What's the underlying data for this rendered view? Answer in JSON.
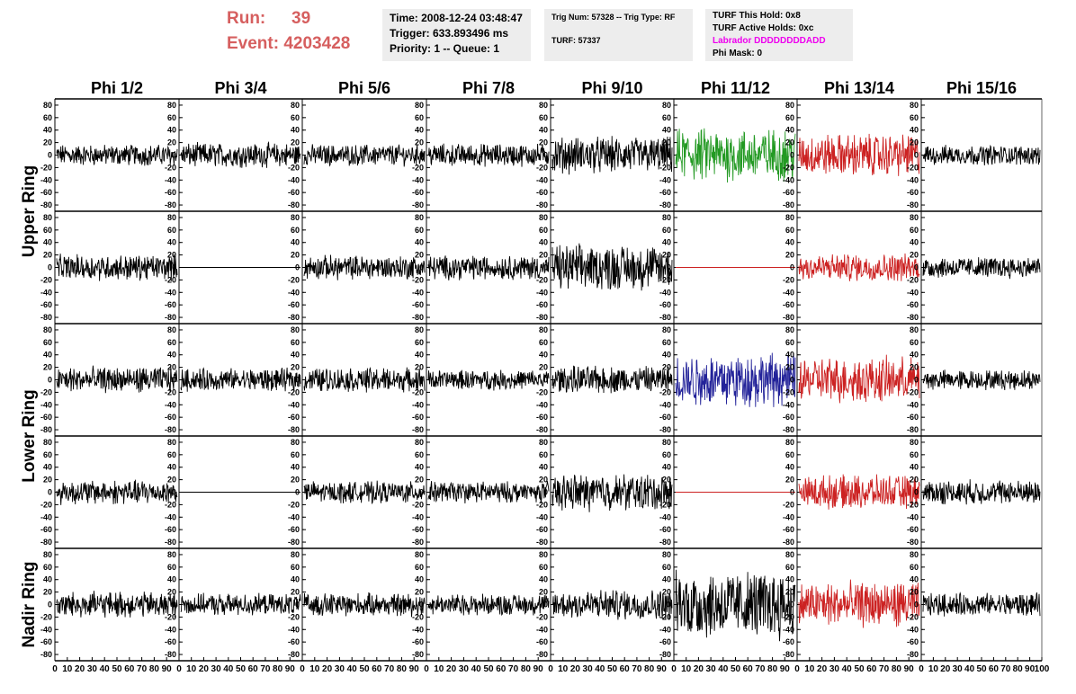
{
  "header": {
    "run_label": "Run:",
    "run_value": "39",
    "event_label": "Event:",
    "event_value": "4203428",
    "time_text": "Time: 2008-12-24 03:48:47",
    "trigger_text": "Trigger: 633.893496 ms",
    "priority_text": "Priority: 1 -- Queue: 1",
    "trig_num_text": "Trig Num: 57328 -- Trig Type: RF",
    "turf_text": "TURF: 57337",
    "turf_hold_text": "TURF This Hold: 0x8",
    "turf_active_text": "TURF Active Holds: 0xc",
    "labrador_text": "Labrador DDDDDDDDADD",
    "phi_mask_text": "Phi Mask: 0",
    "colors": {
      "run": "#d65f5f",
      "labrador": "#ee00ee",
      "box": "#ededed"
    }
  },
  "chart_data": {
    "type": "line",
    "column_titles": [
      "Phi 1/2",
      "Phi 3/4",
      "Phi 5/6",
      "Phi 7/8",
      "Phi 9/10",
      "Phi 11/12",
      "Phi 13/14",
      "Phi 15/16"
    ],
    "ring_labels": [
      "Upper Ring",
      "Lower Ring",
      "Nadir Ring"
    ],
    "rows": 5,
    "ylim": [
      -90,
      90
    ],
    "yticks": [
      -80,
      -60,
      -40,
      -20,
      0,
      20,
      40,
      60,
      80
    ],
    "xlim": [
      0,
      100
    ],
    "xticks": [
      0,
      10,
      20,
      30,
      40,
      50,
      60,
      70,
      80,
      90,
      100
    ],
    "samples_per_trace": 260,
    "colors": {
      "black": "#000000",
      "green": "#229922",
      "red": "#cc2222",
      "blue": "#222299"
    },
    "panels": [
      [
        {
          "amp": 14,
          "color": "black"
        },
        {
          "amp": 16,
          "color": "black"
        },
        {
          "amp": 14,
          "color": "black"
        },
        {
          "amp": 15,
          "color": "black"
        },
        {
          "amp": 24,
          "color": "black"
        },
        {
          "amp": 35,
          "color": "green"
        },
        {
          "amp": 28,
          "color": "red"
        },
        {
          "amp": 13,
          "color": "black"
        }
      ],
      [
        {
          "amp": 17,
          "color": "black"
        },
        {
          "amp": 0,
          "color": "black"
        },
        {
          "amp": 16,
          "color": "black"
        },
        {
          "amp": 16,
          "color": "black"
        },
        {
          "amp": 30,
          "color": "black"
        },
        {
          "amp": 0,
          "color": "red"
        },
        {
          "amp": 18,
          "color": "red"
        },
        {
          "amp": 14,
          "color": "black"
        }
      ],
      [
        {
          "amp": 17,
          "color": "black"
        },
        {
          "amp": 15,
          "color": "black"
        },
        {
          "amp": 16,
          "color": "black"
        },
        {
          "amp": 13,
          "color": "black"
        },
        {
          "amp": 18,
          "color": "black"
        },
        {
          "amp": 35,
          "color": "blue"
        },
        {
          "amp": 30,
          "color": "red"
        },
        {
          "amp": 13,
          "color": "black"
        }
      ],
      [
        {
          "amp": 16,
          "color": "black"
        },
        {
          "amp": 0,
          "color": "black"
        },
        {
          "amp": 14,
          "color": "black"
        },
        {
          "amp": 14,
          "color": "black"
        },
        {
          "amp": 24,
          "color": "black"
        },
        {
          "amp": 0,
          "color": "red"
        },
        {
          "amp": 22,
          "color": "red"
        },
        {
          "amp": 16,
          "color": "black"
        }
      ],
      [
        {
          "amp": 17,
          "color": "black"
        },
        {
          "amp": 14,
          "color": "black"
        },
        {
          "amp": 15,
          "color": "black"
        },
        {
          "amp": 14,
          "color": "black"
        },
        {
          "amp": 20,
          "color": "black"
        },
        {
          "amp": 45,
          "color": "black"
        },
        {
          "amp": 30,
          "color": "red"
        },
        {
          "amp": 15,
          "color": "black"
        }
      ]
    ]
  }
}
